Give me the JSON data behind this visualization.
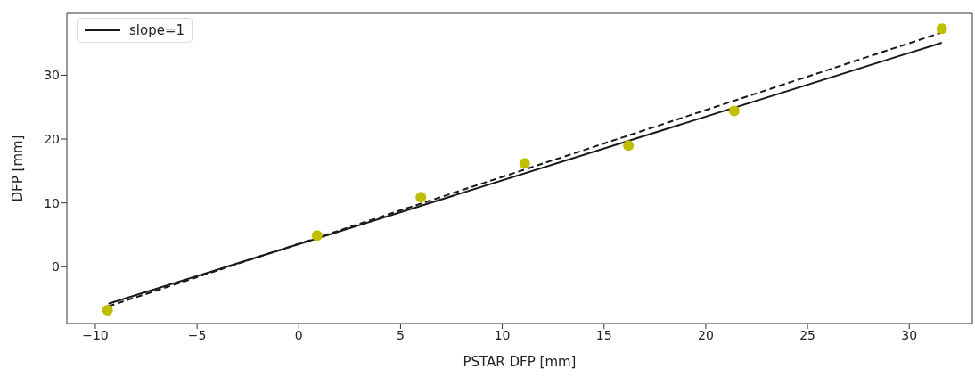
{
  "chart_data": {
    "type": "scatter",
    "xlabel": "PSTAR DFP [mm]",
    "ylabel": "DFP [mm]",
    "xlim": [
      -11.4,
      33.1
    ],
    "xticks": [
      -10,
      -5,
      0,
      5,
      10,
      15,
      20,
      25,
      30
    ],
    "ylim": [
      -8.9,
      39.7
    ],
    "yticks": [
      0,
      10,
      20,
      30
    ],
    "legend": "top left",
    "series": [
      {
        "color": "#bfbf00",
        "marker": "circle",
        "x": [
          -9.4,
          0.9,
          6.0,
          11.1,
          16.2,
          21.4,
          31.6
        ],
        "values": [
          -6.8,
          4.9,
          10.9,
          16.2,
          19.0,
          24.4,
          37.3
        ]
      },
      {
        "type": "line",
        "name": "slope=1",
        "color": "#1a1a1a",
        "line_style": "solid",
        "x": [
          -9.36,
          31.6
        ],
        "values": [
          -5.8,
          35.1
        ]
      },
      {
        "type": "line",
        "color": "#1a1a1a",
        "line_style": "dashed",
        "x": [
          -9.36,
          31.6
        ],
        "values": [
          -6.2,
          36.7
        ]
      }
    ]
  }
}
